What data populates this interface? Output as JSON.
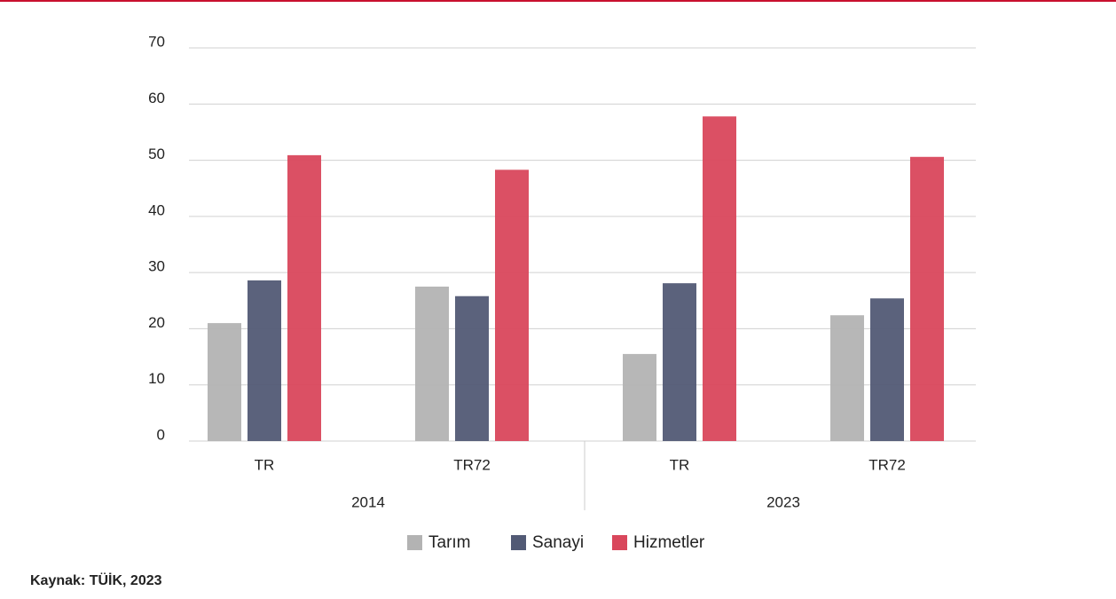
{
  "chart_data": {
    "type": "bar",
    "groups": [
      {
        "label": "2014",
        "categories": [
          "TR",
          "TR72"
        ]
      },
      {
        "label": "2023",
        "categories": [
          "TR",
          "TR72"
        ]
      }
    ],
    "series": [
      {
        "name": "Tarım",
        "color": "#b3b3b3",
        "values": [
          21.0,
          27.5,
          15.5,
          22.4
        ]
      },
      {
        "name": "Sanayi",
        "color": "#525a75",
        "values": [
          28.6,
          25.8,
          28.1,
          25.4
        ]
      },
      {
        "name": "Hizmetler",
        "color": "#d9475c",
        "values": [
          50.9,
          48.3,
          57.8,
          50.6
        ]
      }
    ],
    "ylim": [
      0,
      70
    ],
    "yticks": [
      0,
      10,
      20,
      30,
      40,
      50,
      60,
      70
    ],
    "grid": true,
    "legend": "bottom",
    "source": "Kaynak: TÜİK, 2023"
  }
}
